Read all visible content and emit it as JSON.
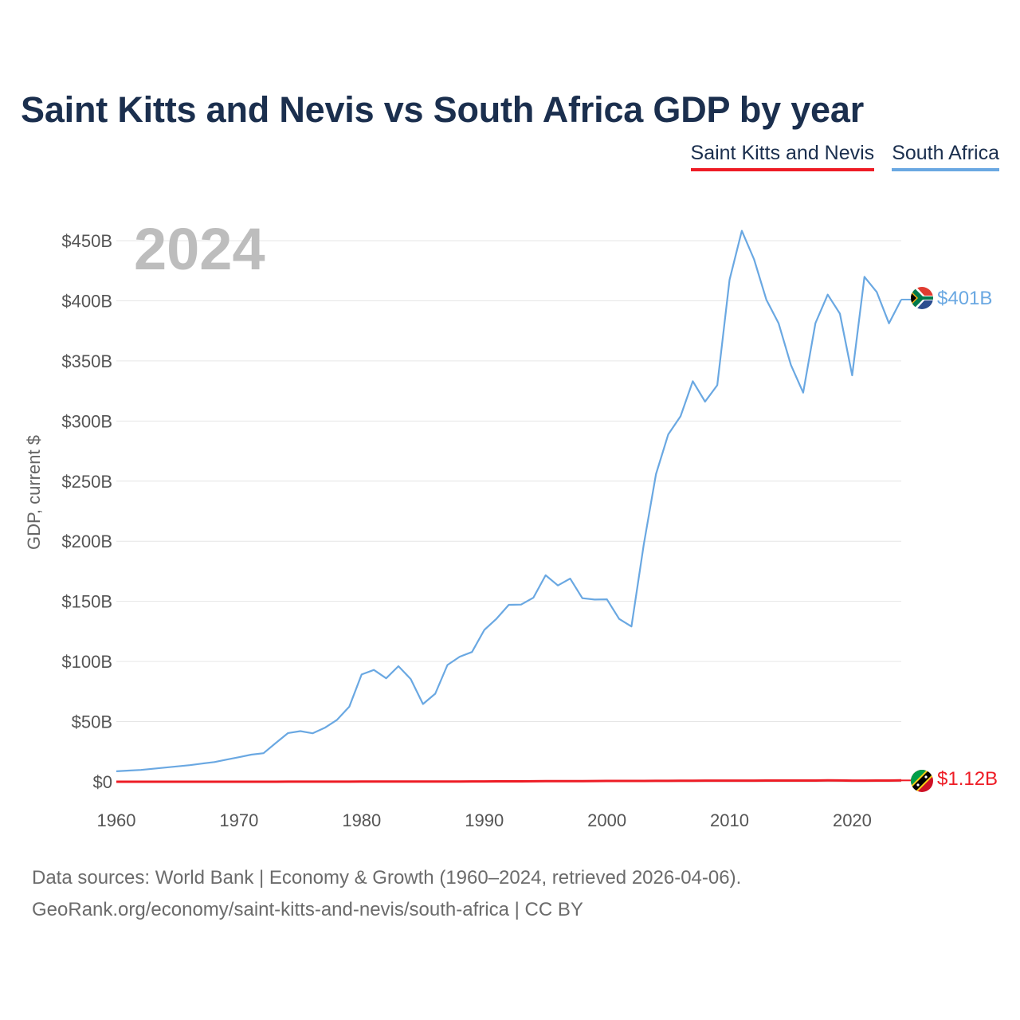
{
  "title": "Saint Kitts and Nevis vs South Africa GDP by year",
  "legend": [
    {
      "name": "Saint Kitts and Nevis",
      "color": "#ee1c25"
    },
    {
      "name": "South Africa",
      "color": "#6aa8e2"
    }
  ],
  "current_year_label": "2024",
  "footer": {
    "line1": "Data sources: World Bank | Economy & Growth (1960–2024, retrieved 2026-04-06).",
    "line2": "GeoRank.org/economy/saint-kitts-and-nevis/south-africa | CC BY"
  },
  "chart_data": {
    "type": "line",
    "title": "Saint Kitts and Nevis vs South Africa GDP by year",
    "xlabel": "",
    "ylabel": "GDP, current $",
    "xlim": [
      1960,
      2024
    ],
    "ylim": [
      0,
      460
    ],
    "x_ticks": [
      1960,
      1970,
      1980,
      1990,
      2000,
      2010,
      2020
    ],
    "y_ticks": [
      0,
      50,
      100,
      150,
      200,
      250,
      300,
      350,
      400,
      450
    ],
    "y_tick_labels": [
      "$0",
      "$50B",
      "$100B",
      "$150B",
      "$200B",
      "$250B",
      "$300B",
      "$350B",
      "$400B",
      "$450B"
    ],
    "grid": true,
    "legend_position": "top-right",
    "x": [
      1960,
      1961,
      1962,
      1963,
      1964,
      1965,
      1966,
      1967,
      1968,
      1969,
      1970,
      1971,
      1972,
      1973,
      1974,
      1975,
      1976,
      1977,
      1978,
      1979,
      1980,
      1981,
      1982,
      1983,
      1984,
      1985,
      1986,
      1987,
      1988,
      1989,
      1990,
      1991,
      1992,
      1993,
      1994,
      1995,
      1996,
      1997,
      1998,
      1999,
      2000,
      2001,
      2002,
      2003,
      2004,
      2005,
      2006,
      2007,
      2008,
      2009,
      2010,
      2011,
      2012,
      2013,
      2014,
      2015,
      2016,
      2017,
      2018,
      2019,
      2020,
      2021,
      2022,
      2023,
      2024
    ],
    "series": [
      {
        "name": "Saint Kitts and Nevis",
        "color": "#ee1c25",
        "unit": "billion USD",
        "end_label": "$1.12B",
        "values": [
          0.012,
          0.012,
          0.013,
          0.013,
          0.014,
          0.014,
          0.015,
          0.015,
          0.016,
          0.017,
          0.017,
          0.02,
          0.022,
          0.025,
          0.035,
          0.04,
          0.045,
          0.05,
          0.06,
          0.07,
          0.1,
          0.11,
          0.12,
          0.13,
          0.14,
          0.15,
          0.17,
          0.2,
          0.23,
          0.25,
          0.27,
          0.3,
          0.32,
          0.35,
          0.4,
          0.45,
          0.49,
          0.53,
          0.55,
          0.59,
          0.63,
          0.67,
          0.68,
          0.69,
          0.72,
          0.75,
          0.82,
          0.88,
          0.94,
          0.93,
          0.94,
          0.96,
          0.96,
          0.99,
          0.98,
          0.99,
          1.0,
          1.0,
          1.14,
          1.06,
          0.93,
          0.92,
          0.97,
          1.02,
          1.12
        ]
      },
      {
        "name": "South Africa",
        "color": "#6aa8e2",
        "unit": "billion USD",
        "end_label": "$401B",
        "values": [
          8.7,
          9.3,
          9.8,
          10.8,
          11.8,
          12.8,
          13.8,
          15.1,
          16.4,
          18.4,
          20.4,
          22.5,
          23.7,
          32.2,
          40.5,
          42.1,
          40.3,
          44.9,
          51.5,
          62.5,
          89.2,
          93.0,
          86.0,
          96.1,
          85.4,
          64.6,
          73.2,
          97.1,
          104.0,
          107.9,
          126.2,
          135.6,
          147.1,
          147.3,
          153.0,
          171.7,
          163.2,
          168.9,
          152.6,
          151.5,
          151.7,
          135.4,
          129.1,
          197.0,
          255.8,
          288.9,
          303.9,
          333.1,
          316.1,
          329.8,
          417.4,
          458.2,
          434.4,
          400.9,
          381.2,
          346.7,
          323.6,
          381.4,
          405.1,
          389.3,
          338.0,
          419.9,
          407.3,
          381.2,
          401.0
        ]
      }
    ]
  }
}
